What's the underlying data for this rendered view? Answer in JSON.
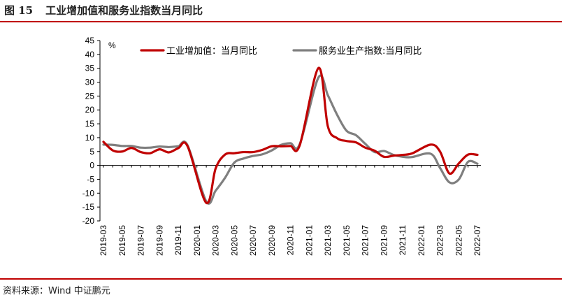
{
  "figure": {
    "number": "图 15",
    "title": "工业增加值和服务业指数当月同比",
    "source": "资料来源：Wind   中证鹏元"
  },
  "chart_data": {
    "type": "line",
    "title": "工业增加值和服务业指数当月同比",
    "y_unit": "%",
    "ylim": [
      -20,
      45
    ],
    "yticks": [
      -20,
      -15,
      -10,
      -5,
      0,
      5,
      10,
      15,
      20,
      25,
      30,
      35,
      40,
      45
    ],
    "grid": false,
    "legend_placement": "top",
    "x": [
      "2019-03",
      "2019-04",
      "2019-05",
      "2019-06",
      "2019-07",
      "2019-08",
      "2019-09",
      "2019-10",
      "2019-11",
      "2019-12",
      "2020-01",
      "2020-02",
      "2020-03",
      "2020-04",
      "2020-05",
      "2020-06",
      "2020-07",
      "2020-08",
      "2020-09",
      "2020-10",
      "2020-11",
      "2020-12",
      "2021-01",
      "2021-02",
      "2021-03",
      "2021-04",
      "2021-05",
      "2021-06",
      "2021-07",
      "2021-08",
      "2021-09",
      "2021-10",
      "2021-11",
      "2021-12",
      "2022-01",
      "2022-02",
      "2022-03",
      "2022-04",
      "2022-05",
      "2022-06",
      "2022-07"
    ],
    "xtick_labels": [
      "2019-03",
      "2019-05",
      "2019-07",
      "2019-09",
      "2019-11",
      "2020-01",
      "2020-03",
      "2020-05",
      "2020-07",
      "2020-09",
      "2020-11",
      "2021-01",
      "2021-03",
      "2021-05",
      "2021-07",
      "2021-09",
      "2021-11",
      "2022-01",
      "2022-03",
      "2022-05",
      "2022-07"
    ],
    "series": [
      {
        "name": "工业增加值：当月同比",
        "color": "#c00000",
        "values": [
          8.5,
          5.4,
          5.0,
          6.3,
          4.8,
          4.4,
          5.8,
          4.7,
          6.2,
          6.9,
          null,
          -13.5,
          -1.1,
          3.9,
          4.4,
          4.8,
          4.8,
          5.6,
          6.9,
          6.9,
          7.0,
          7.3,
          null,
          35.1,
          14.1,
          9.8,
          8.8,
          8.3,
          6.4,
          5.3,
          3.1,
          3.5,
          3.8,
          4.3,
          null,
          7.5,
          5.0,
          -2.9,
          0.7,
          3.9,
          3.8
        ]
      },
      {
        "name": "服务业生产指数:当月同比",
        "color": "#7f7f7f",
        "values": [
          7.5,
          7.4,
          7.0,
          7.0,
          6.4,
          6.4,
          6.8,
          6.6,
          6.9,
          7.2,
          null,
          -13.0,
          -9.1,
          -4.5,
          1.0,
          2.5,
          3.4,
          4.0,
          5.4,
          7.4,
          8.0,
          7.7,
          null,
          31.7,
          25.3,
          18.2,
          12.5,
          10.9,
          7.8,
          4.8,
          5.2,
          3.8,
          3.1,
          3.0,
          null,
          4.2,
          -0.9,
          -6.1,
          -5.1,
          1.3,
          0.6
        ]
      }
    ]
  }
}
